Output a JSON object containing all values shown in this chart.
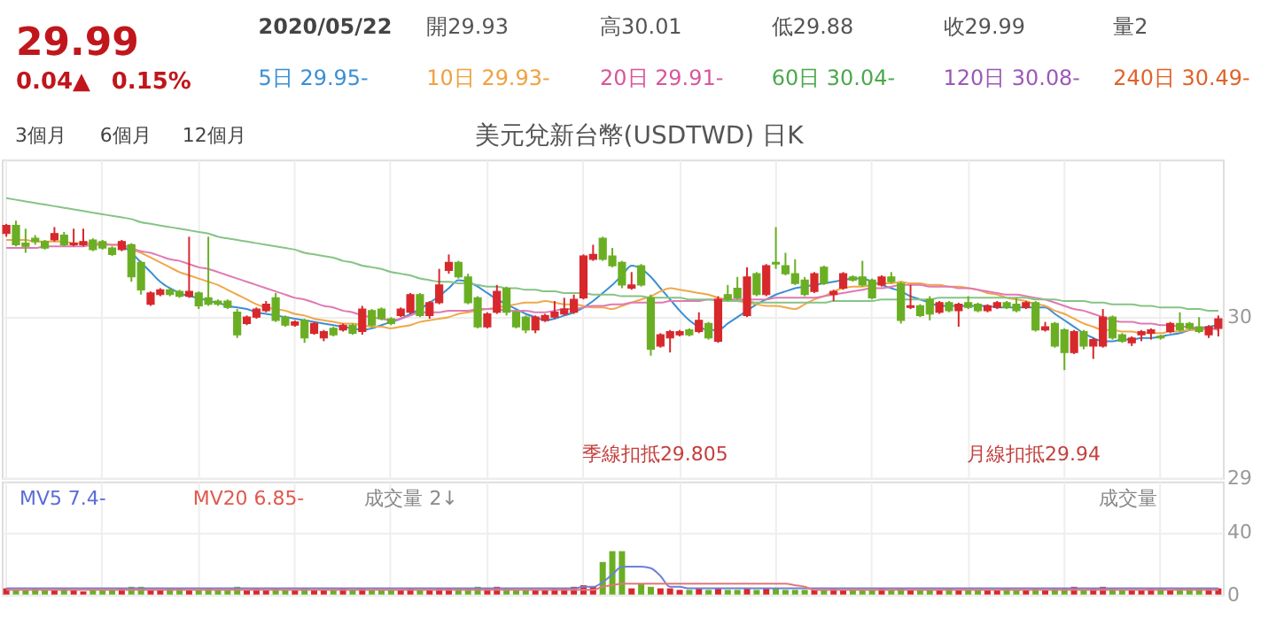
{
  "chart_data": [
    {
      "type": "other",
      "annotations": [
        "29.99",
        "0.04▲",
        "0.15%",
        "2020/05/22",
        "開29.93",
        "高30.01",
        "低29.88",
        "收29.99",
        "量2",
        "5日 29.95-",
        "10日 29.93-",
        "20日 29.91-",
        "60日 30.04-",
        "120日 30.08-",
        "240日 30.49-",
        "3個月",
        "6個月",
        "12個月"
      ]
    },
    {
      "type": "candlestick",
      "title": "美元兌新台幣(USDTWD) 日K",
      "categories": [
        null,
        null,
        null,
        null,
        null,
        null,
        null,
        null,
        null,
        null,
        null,
        null,
        null,
        null,
        null,
        null,
        null,
        null,
        null,
        null,
        null,
        null,
        null,
        null,
        null,
        null,
        null,
        null,
        null,
        null,
        null,
        null,
        null,
        null,
        null,
        null,
        null,
        null,
        null,
        null,
        null,
        null,
        null,
        null,
        null,
        null,
        null,
        null,
        null,
        null,
        null,
        null,
        null,
        null,
        null,
        null,
        null,
        null,
        null,
        null,
        null,
        null,
        null,
        null,
        null,
        null,
        null,
        null,
        null,
        null,
        null,
        null,
        null,
        null,
        null,
        null,
        null,
        null,
        null,
        null,
        null,
        null,
        null,
        null,
        null,
        null,
        null,
        null,
        null,
        null,
        null,
        null,
        null,
        null,
        null,
        null,
        null,
        null,
        null,
        null,
        null,
        null,
        null,
        null,
        null,
        null,
        null,
        null,
        null,
        null,
        null,
        null,
        null,
        null,
        null,
        null,
        null,
        null,
        null,
        null,
        null,
        null,
        null,
        null,
        null,
        null,
        null
      ],
      "ohlc": [
        [
          30.52,
          30.58,
          30.5,
          30.57
        ],
        [
          30.57,
          30.6,
          30.44,
          30.45
        ],
        [
          30.46,
          30.55,
          30.4,
          30.44
        ],
        [
          30.49,
          30.51,
          30.45,
          30.47
        ],
        [
          30.47,
          30.48,
          30.42,
          30.43
        ],
        [
          30.48,
          30.56,
          30.47,
          30.52
        ],
        [
          30.51,
          30.53,
          30.44,
          30.45
        ],
        [
          30.45,
          30.55,
          30.44,
          30.46
        ],
        [
          30.45,
          30.55,
          30.44,
          30.47
        ],
        [
          30.48,
          30.49,
          30.41,
          30.42
        ],
        [
          30.47,
          30.48,
          30.42,
          30.43
        ],
        [
          30.43,
          30.44,
          30.38,
          30.39
        ],
        [
          30.42,
          30.48,
          30.41,
          30.47
        ],
        [
          30.45,
          30.46,
          30.22,
          30.25
        ],
        [
          30.34,
          30.35,
          30.14,
          30.17
        ],
        [
          30.08,
          30.16,
          30.07,
          30.15
        ],
        [
          30.14,
          30.18,
          30.13,
          30.17
        ],
        [
          30.17,
          30.18,
          30.13,
          30.14
        ],
        [
          30.16,
          30.17,
          30.12,
          30.13
        ],
        [
          30.13,
          30.5,
          30.12,
          30.16
        ],
        [
          30.15,
          30.16,
          30.05,
          30.07
        ],
        [
          30.12,
          30.5,
          30.07,
          30.08
        ],
        [
          30.1,
          30.11,
          30.07,
          30.08
        ],
        [
          30.1,
          30.11,
          30.05,
          30.06
        ],
        [
          30.03,
          30.05,
          29.87,
          29.89
        ],
        [
          29.96,
          30.01,
          29.95,
          30.0
        ],
        [
          30.0,
          30.06,
          29.99,
          30.05
        ],
        [
          30.04,
          30.1,
          30.03,
          30.08
        ],
        [
          30.12,
          30.15,
          29.97,
          29.98
        ],
        [
          30.0,
          30.01,
          29.94,
          29.95
        ],
        [
          29.95,
          29.98,
          29.94,
          29.97
        ],
        [
          29.98,
          29.99,
          29.84,
          29.87
        ],
        [
          29.9,
          29.97,
          29.89,
          29.96
        ],
        [
          29.87,
          29.92,
          29.85,
          29.91
        ],
        [
          29.93,
          29.94,
          29.88,
          29.89
        ],
        [
          29.92,
          29.96,
          29.91,
          29.95
        ],
        [
          29.95,
          29.96,
          29.89,
          29.9
        ],
        [
          29.91,
          30.07,
          29.89,
          30.05
        ],
        [
          30.04,
          30.05,
          29.94,
          29.95
        ],
        [
          30.05,
          30.06,
          29.98,
          29.99
        ],
        [
          29.99,
          30.0,
          29.95,
          29.96
        ],
        [
          30.01,
          30.06,
          30.0,
          30.05
        ],
        [
          30.03,
          30.15,
          30.02,
          30.14
        ],
        [
          30.14,
          30.15,
          30.0,
          30.01
        ],
        [
          30.01,
          30.1,
          29.99,
          30.09
        ],
        [
          30.09,
          30.3,
          30.08,
          30.2
        ],
        [
          30.29,
          30.39,
          30.27,
          30.34
        ],
        [
          30.34,
          30.35,
          30.24,
          30.25
        ],
        [
          30.25,
          30.27,
          30.08,
          30.09
        ],
        [
          30.12,
          30.13,
          29.93,
          29.94
        ],
        [
          29.94,
          30.03,
          29.93,
          30.02
        ],
        [
          30.03,
          30.2,
          30.02,
          30.16
        ],
        [
          30.18,
          30.19,
          30.01,
          30.03
        ],
        [
          30.03,
          30.04,
          29.93,
          29.94
        ],
        [
          30.0,
          30.01,
          29.9,
          29.92
        ],
        [
          29.92,
          30.01,
          29.9,
          30.0
        ],
        [
          29.98,
          30.02,
          29.97,
          30.01
        ],
        [
          30.0,
          30.1,
          29.99,
          30.03
        ],
        [
          30.02,
          30.12,
          30.01,
          30.05
        ],
        [
          30.03,
          30.14,
          30.02,
          30.11
        ],
        [
          30.12,
          30.39,
          30.11,
          30.38
        ],
        [
          30.36,
          30.45,
          30.35,
          30.39
        ],
        [
          30.49,
          30.5,
          30.35,
          30.36
        ],
        [
          30.38,
          30.43,
          30.31,
          30.32
        ],
        [
          30.34,
          30.35,
          30.18,
          30.2
        ],
        [
          30.18,
          30.28,
          30.17,
          30.2
        ],
        [
          30.32,
          30.33,
          30.19,
          30.2
        ],
        [
          30.12,
          30.14,
          29.76,
          29.8
        ],
        [
          29.82,
          29.9,
          29.81,
          29.89
        ],
        [
          29.87,
          29.92,
          29.78,
          29.91
        ],
        [
          29.89,
          29.92,
          29.88,
          29.91
        ],
        [
          29.92,
          29.93,
          29.88,
          29.89
        ],
        [
          29.91,
          30.03,
          29.9,
          29.98
        ],
        [
          29.96,
          29.97,
          29.86,
          29.87
        ],
        [
          29.85,
          30.13,
          29.84,
          30.11
        ],
        [
          30.14,
          30.2,
          30.1,
          30.11
        ],
        [
          30.18,
          30.25,
          30.11,
          30.12
        ],
        [
          30.01,
          30.31,
          30.0,
          30.25
        ],
        [
          30.27,
          30.28,
          30.13,
          30.14
        ],
        [
          30.14,
          30.33,
          30.13,
          30.32
        ],
        [
          30.34,
          30.56,
          30.3,
          30.33
        ],
        [
          30.32,
          30.4,
          30.26,
          30.27
        ],
        [
          30.27,
          30.36,
          30.2,
          30.21
        ],
        [
          30.23,
          30.25,
          30.13,
          30.14
        ],
        [
          30.16,
          30.28,
          30.15,
          30.27
        ],
        [
          30.31,
          30.32,
          30.2,
          30.21
        ],
        [
          30.14,
          30.17,
          30.1,
          30.16
        ],
        [
          30.18,
          30.28,
          30.17,
          30.27
        ],
        [
          30.25,
          30.26,
          30.22,
          30.23
        ],
        [
          30.25,
          30.35,
          30.19,
          30.2
        ],
        [
          30.23,
          30.24,
          30.11,
          30.12
        ],
        [
          30.2,
          30.26,
          30.19,
          30.25
        ],
        [
          30.25,
          30.28,
          30.21,
          30.22
        ],
        [
          30.21,
          30.22,
          29.96,
          29.98
        ],
        [
          30.06,
          30.2,
          30.05,
          30.07
        ],
        [
          30.07,
          30.08,
          30.0,
          30.01
        ],
        [
          30.11,
          30.13,
          29.98,
          30.02
        ],
        [
          30.03,
          30.1,
          30.02,
          30.09
        ],
        [
          30.09,
          30.1,
          30.03,
          30.04
        ],
        [
          30.04,
          30.09,
          29.94,
          30.08
        ],
        [
          30.09,
          30.13,
          30.05,
          30.06
        ],
        [
          30.08,
          30.09,
          30.03,
          30.04
        ],
        [
          30.04,
          30.08,
          30.03,
          30.07
        ],
        [
          30.06,
          30.1,
          30.05,
          30.09
        ],
        [
          30.09,
          30.1,
          30.05,
          30.06
        ],
        [
          30.08,
          30.12,
          30.03,
          30.04
        ],
        [
          30.06,
          30.1,
          30.05,
          30.09
        ],
        [
          30.09,
          30.1,
          29.91,
          29.92
        ],
        [
          29.92,
          29.97,
          29.91,
          29.94
        ],
        [
          29.96,
          29.97,
          29.81,
          29.82
        ],
        [
          29.92,
          29.93,
          29.67,
          29.78
        ],
        [
          29.78,
          29.92,
          29.77,
          29.91
        ],
        [
          29.91,
          29.92,
          29.8,
          29.82
        ],
        [
          29.82,
          29.87,
          29.74,
          29.86
        ],
        [
          29.82,
          30.05,
          29.81,
          30.0
        ],
        [
          30.0,
          30.01,
          29.86,
          29.87
        ],
        [
          29.89,
          29.9,
          29.84,
          29.85
        ],
        [
          29.84,
          29.88,
          29.82,
          29.87
        ],
        [
          29.89,
          29.92,
          29.85,
          29.91
        ],
        [
          29.9,
          29.93,
          29.86,
          29.92
        ],
        [
          29.88,
          29.89,
          29.86,
          29.87
        ],
        [
          29.91,
          29.97,
          29.9,
          29.96
        ],
        [
          29.96,
          30.03,
          29.91,
          29.92
        ],
        [
          29.96,
          29.97,
          29.92,
          29.93
        ],
        [
          29.94,
          30.0,
          29.9,
          29.91
        ],
        [
          29.89,
          29.95,
          29.87,
          29.94
        ],
        [
          29.93,
          30.01,
          29.88,
          29.99
        ]
      ],
      "colors": [
        "#d7282c",
        "#6aaf23",
        "#6aaf23",
        "#6aaf23",
        "#6aaf23",
        "#d7282c",
        "#6aaf23",
        "#d7282c",
        "#d7282c",
        "#6aaf23",
        "#6aaf23",
        "#6aaf23",
        "#d7282c",
        "#6aaf23",
        "#6aaf23",
        "#d7282c",
        "#d7282c",
        "#6aaf23",
        "#6aaf23",
        "#d7282c",
        "#6aaf23",
        "#6aaf23",
        "#6aaf23",
        "#6aaf23",
        "#6aaf23",
        "#d7282c",
        "#d7282c",
        "#d7282c",
        "#6aaf23",
        "#6aaf23",
        "#d7282c",
        "#6aaf23",
        "#d7282c",
        "#d7282c",
        "#6aaf23",
        "#d7282c",
        "#6aaf23",
        "#d7282c",
        "#6aaf23",
        "#6aaf23",
        "#6aaf23",
        "#d7282c",
        "#d7282c",
        "#6aaf23",
        "#d7282c",
        "#d7282c",
        "#d7282c",
        "#6aaf23",
        "#6aaf23",
        "#6aaf23",
        "#d7282c",
        "#d7282c",
        "#6aaf23",
        "#6aaf23",
        "#6aaf23",
        "#d7282c",
        "#d7282c",
        "#d7282c",
        "#d7282c",
        "#d7282c",
        "#d7282c",
        "#d7282c",
        "#6aaf23",
        "#6aaf23",
        "#6aaf23",
        "#d7282c",
        "#6aaf23",
        "#6aaf23",
        "#d7282c",
        "#d7282c",
        "#d7282c",
        "#6aaf23",
        "#d7282c",
        "#6aaf23",
        "#d7282c",
        "#6aaf23",
        "#6aaf23",
        "#d7282c",
        "#6aaf23",
        "#d7282c",
        "#6aaf23",
        "#6aaf23",
        "#6aaf23",
        "#6aaf23",
        "#d7282c",
        "#6aaf23",
        "#d7282c",
        "#d7282c",
        "#6aaf23",
        "#6aaf23",
        "#6aaf23",
        "#d7282c",
        "#6aaf23",
        "#6aaf23",
        "#d7282c",
        "#6aaf23",
        "#6aaf23",
        "#d7282c",
        "#6aaf23",
        "#d7282c",
        "#6aaf23",
        "#6aaf23",
        "#d7282c",
        "#d7282c",
        "#6aaf23",
        "#6aaf23",
        "#d7282c",
        "#6aaf23",
        "#d7282c",
        "#6aaf23",
        "#6aaf23",
        "#d7282c",
        "#6aaf23",
        "#d7282c",
        "#d7282c",
        "#6aaf23",
        "#6aaf23",
        "#d7282c",
        "#d7282c",
        "#d7282c",
        "#6aaf23",
        "#d7282c",
        "#6aaf23",
        "#6aaf23",
        "#6aaf23",
        "#d7282c",
        "#d7282c"
      ],
      "series": [
        {
          "type": "line",
          "color": "#3b8fd4",
          "values": [
            null,
            null,
            null,
            null,
            null,
            null,
            null,
            null,
            null,
            null,
            null,
            null,
            30.45,
            30.4,
            30.34,
            30.28,
            30.22,
            30.18,
            30.15,
            30.13,
            30.12,
            30.1,
            30.09,
            30.07,
            30.06,
            30.05,
            30.03,
            30.02,
            30.01,
            30.0,
            29.99,
            29.98,
            29.97,
            29.96,
            29.95,
            29.94,
            29.93,
            29.92,
            29.93,
            29.95,
            29.97,
            29.99,
            30.02,
            30.05,
            30.09,
            30.13,
            30.18,
            30.23,
            30.22,
            30.19,
            30.15,
            30.11,
            30.08,
            30.05,
            30.02,
            30.0,
            29.98,
            29.99,
            30.01,
            30.03,
            30.06,
            30.1,
            30.15,
            30.2,
            30.26,
            30.32,
            30.3,
            30.25,
            30.18,
            30.11,
            30.04,
            29.98,
            29.94,
            29.92,
            29.92,
            29.96,
            30.0,
            30.04,
            30.08,
            30.11,
            30.14,
            30.16,
            30.18,
            30.19,
            30.2,
            30.21,
            30.22,
            30.23,
            30.24,
            30.24,
            30.22,
            30.2,
            30.18,
            30.16,
            30.13,
            30.11,
            30.09,
            30.07,
            30.07,
            30.07,
            30.07,
            30.07,
            30.07,
            30.06,
            30.06,
            30.06,
            30.06,
            30.06,
            30.06,
            30.02,
            29.98,
            29.94,
            29.9,
            29.87,
            29.85,
            29.85,
            29.86,
            29.86,
            29.87,
            29.87,
            29.88,
            29.89,
            29.9,
            29.92,
            29.93,
            29.94,
            29.95
          ]
        },
        {
          "type": "line",
          "color": "#f0a848",
          "values": [
            30.48,
            30.48,
            30.48,
            30.47,
            30.47,
            30.47,
            30.47,
            30.46,
            30.46,
            30.46,
            30.46,
            30.45,
            30.45,
            30.42,
            30.4,
            30.37,
            30.34,
            30.31,
            30.28,
            30.26,
            30.24,
            30.22,
            30.2,
            30.17,
            30.14,
            30.11,
            30.08,
            30.06,
            30.05,
            30.04,
            30.02,
            30.01,
            29.99,
            29.98,
            29.97,
            29.96,
            29.96,
            29.95,
            29.94,
            29.94,
            29.93,
            29.94,
            29.95,
            29.97,
            29.98,
            29.99,
            30.0,
            30.02,
            30.03,
            30.04,
            30.05,
            30.06,
            30.07,
            30.08,
            30.09,
            30.09,
            30.1,
            30.09,
            30.08,
            30.08,
            30.07,
            30.06,
            30.06,
            30.05,
            30.07,
            30.09,
            30.11,
            30.13,
            30.16,
            30.18,
            30.17,
            30.16,
            30.15,
            30.14,
            30.12,
            30.11,
            30.1,
            30.09,
            30.08,
            30.07,
            30.07,
            30.06,
            30.05,
            30.08,
            30.11,
            30.13,
            30.16,
            30.18,
            30.19,
            30.19,
            30.2,
            30.21,
            30.21,
            30.22,
            30.21,
            30.21,
            30.2,
            30.2,
            30.19,
            30.19,
            30.18,
            30.17,
            30.15,
            30.14,
            30.12,
            30.11,
            30.1,
            30.08,
            30.07,
            30.04,
            30.02,
            29.99,
            29.96,
            29.94,
            29.92,
            29.92,
            29.91,
            29.91,
            29.9,
            29.9,
            29.9,
            29.91,
            29.91,
            29.92,
            29.92,
            29.93,
            29.93
          ]
        },
        {
          "type": "line",
          "color": "#e07ab2",
          "values": [
            30.43,
            30.43,
            30.43,
            30.43,
            30.44,
            30.44,
            30.44,
            30.44,
            30.44,
            30.45,
            30.45,
            30.45,
            30.45,
            30.43,
            30.41,
            30.4,
            30.38,
            30.36,
            30.35,
            30.33,
            30.31,
            30.3,
            30.28,
            30.26,
            30.24,
            30.22,
            30.2,
            30.18,
            30.16,
            30.14,
            30.12,
            30.11,
            30.09,
            30.07,
            30.06,
            30.04,
            30.03,
            30.01,
            30.0,
            29.99,
            29.98,
            29.99,
            30.01,
            30.03,
            30.03,
            30.03,
            30.04,
            30.04,
            30.04,
            30.05,
            30.05,
            30.05,
            30.04,
            30.04,
            30.04,
            30.03,
            30.03,
            30.04,
            30.05,
            30.05,
            30.06,
            30.07,
            30.07,
            30.08,
            30.08,
            30.09,
            30.09,
            30.09,
            30.09,
            30.1,
            30.1,
            30.1,
            30.1,
            30.11,
            30.11,
            30.11,
            30.11,
            30.11,
            30.11,
            30.11,
            30.12,
            30.12,
            30.12,
            30.12,
            30.12,
            30.13,
            30.14,
            30.15,
            30.16,
            30.17,
            30.18,
            30.18,
            30.19,
            30.2,
            30.2,
            30.2,
            30.19,
            30.19,
            30.19,
            30.18,
            30.18,
            30.17,
            30.16,
            30.15,
            30.14,
            30.14,
            30.13,
            30.12,
            30.11,
            30.09,
            30.07,
            30.05,
            30.04,
            30.02,
            30.0,
            29.98,
            29.97,
            29.97,
            29.96,
            29.96,
            29.95,
            29.95,
            29.94,
            29.94,
            29.93,
            29.93,
            29.92
          ]
        },
        {
          "type": "line",
          "color": "#86c486",
          "values": [
            30.74,
            30.73,
            30.72,
            30.71,
            30.7,
            30.69,
            30.68,
            30.67,
            30.66,
            30.65,
            30.64,
            30.63,
            30.62,
            30.61,
            30.59,
            30.58,
            30.57,
            30.56,
            30.55,
            30.54,
            30.53,
            30.52,
            30.5,
            30.49,
            30.48,
            30.47,
            30.46,
            30.45,
            30.44,
            30.43,
            30.42,
            30.4,
            30.39,
            30.38,
            30.37,
            30.35,
            30.34,
            30.32,
            30.31,
            30.3,
            30.28,
            30.27,
            30.26,
            30.24,
            30.23,
            30.22,
            30.22,
            30.21,
            30.21,
            30.2,
            30.19,
            30.19,
            30.18,
            30.18,
            30.17,
            30.17,
            30.16,
            30.16,
            30.15,
            30.15,
            30.15,
            30.14,
            30.14,
            30.14,
            30.13,
            30.13,
            30.13,
            30.12,
            30.12,
            30.12,
            30.12,
            30.11,
            30.11,
            30.11,
            30.1,
            30.1,
            30.1,
            30.1,
            30.09,
            30.09,
            30.09,
            30.09,
            30.09,
            30.09,
            30.09,
            30.09,
            30.1,
            30.1,
            30.1,
            30.1,
            30.1,
            30.11,
            30.11,
            30.11,
            30.11,
            30.11,
            30.11,
            30.12,
            30.12,
            30.12,
            30.12,
            30.12,
            30.12,
            30.12,
            30.12,
            30.12,
            30.12,
            30.11,
            30.11,
            30.11,
            30.1,
            30.1,
            30.1,
            30.09,
            30.09,
            30.08,
            30.08,
            30.08,
            30.07,
            30.07,
            30.06,
            30.06,
            30.06,
            30.05,
            30.05,
            30.04,
            30.04
          ]
        }
      ],
      "ylim": [
        29,
        30.98
      ],
      "yticks": [
        29,
        30
      ],
      "grid": true,
      "tick_labels": "y",
      "annotations": [
        "季線扣抵29.805",
        "月線扣抵29.94"
      ]
    },
    {
      "type": "bar",
      "categories": [
        null,
        null,
        null,
        null,
        null,
        null,
        null,
        null,
        null,
        null,
        null,
        null,
        null,
        null,
        null,
        null,
        null,
        null,
        null,
        null,
        null,
        null,
        null,
        null,
        null,
        null,
        null,
        null,
        null,
        null,
        null,
        null,
        null,
        null,
        null,
        null,
        null,
        null,
        null,
        null,
        null,
        null,
        null,
        null,
        null,
        null,
        null,
        null,
        null,
        null,
        null,
        null,
        null,
        null,
        null,
        null,
        null,
        null,
        null,
        null,
        null,
        null,
        null,
        null,
        null,
        null,
        null,
        null,
        null,
        null,
        null,
        null,
        null,
        null,
        null,
        null,
        null,
        null,
        null,
        null,
        null,
        null,
        null,
        null,
        null,
        null,
        null,
        null,
        null,
        null,
        null,
        null,
        null,
        null,
        null,
        null,
        null,
        null,
        null,
        null,
        null,
        null,
        null,
        null,
        null,
        null,
        null,
        null,
        null,
        null,
        null,
        null,
        null,
        null,
        null,
        null,
        null,
        null,
        null,
        null,
        null,
        null,
        null,
        null,
        null,
        null,
        null
      ],
      "series": [
        {
          "type": "bar",
          "values": [
            4,
            3,
            3,
            4,
            3,
            3,
            4,
            3,
            2,
            3,
            3,
            3,
            4,
            5,
            5,
            3,
            3,
            4,
            4,
            3,
            3,
            4,
            3,
            3,
            5,
            3,
            4,
            3,
            4,
            3,
            3,
            4,
            3,
            3,
            3,
            4,
            3,
            4,
            3,
            3,
            3,
            3,
            4,
            3,
            3,
            4,
            4,
            4,
            4,
            5,
            4,
            5,
            4,
            3,
            3,
            3,
            3,
            4,
            4,
            5,
            6,
            5,
            21,
            28,
            28,
            4,
            7,
            5,
            4,
            4,
            3,
            3,
            4,
            3,
            4,
            3,
            3,
            4,
            3,
            4,
            4,
            3,
            3,
            3,
            3,
            3,
            4,
            3,
            3,
            3,
            3,
            4,
            3,
            4,
            3,
            3,
            3,
            3,
            4,
            3,
            3,
            3,
            3,
            3,
            4,
            3,
            3,
            4,
            3,
            4,
            4,
            5,
            3,
            4,
            5,
            4,
            3,
            3,
            3,
            4,
            4,
            3,
            4,
            4,
            4,
            4,
            4
          ],
          "colors": [
            "#d7282c",
            "#6aaf23",
            "#6aaf23",
            "#6aaf23",
            "#6aaf23",
            "#d7282c",
            "#6aaf23",
            "#d7282c",
            "#d7282c",
            "#6aaf23",
            "#6aaf23",
            "#6aaf23",
            "#d7282c",
            "#6aaf23",
            "#6aaf23",
            "#d7282c",
            "#d7282c",
            "#6aaf23",
            "#6aaf23",
            "#d7282c",
            "#6aaf23",
            "#6aaf23",
            "#6aaf23",
            "#6aaf23",
            "#6aaf23",
            "#d7282c",
            "#d7282c",
            "#d7282c",
            "#6aaf23",
            "#6aaf23",
            "#d7282c",
            "#6aaf23",
            "#d7282c",
            "#d7282c",
            "#6aaf23",
            "#d7282c",
            "#6aaf23",
            "#d7282c",
            "#6aaf23",
            "#6aaf23",
            "#6aaf23",
            "#d7282c",
            "#d7282c",
            "#6aaf23",
            "#d7282c",
            "#d7282c",
            "#d7282c",
            "#6aaf23",
            "#6aaf23",
            "#6aaf23",
            "#d7282c",
            "#d7282c",
            "#6aaf23",
            "#6aaf23",
            "#6aaf23",
            "#d7282c",
            "#d7282c",
            "#d7282c",
            "#d7282c",
            "#d7282c",
            "#d7282c",
            "#d7282c",
            "#6aaf23",
            "#6aaf23",
            "#6aaf23",
            "#d7282c",
            "#6aaf23",
            "#6aaf23",
            "#d7282c",
            "#d7282c",
            "#d7282c",
            "#6aaf23",
            "#d7282c",
            "#6aaf23",
            "#d7282c",
            "#6aaf23",
            "#6aaf23",
            "#d7282c",
            "#6aaf23",
            "#d7282c",
            "#6aaf23",
            "#6aaf23",
            "#6aaf23",
            "#6aaf23",
            "#d7282c",
            "#6aaf23",
            "#d7282c",
            "#d7282c",
            "#6aaf23",
            "#6aaf23",
            "#6aaf23",
            "#d7282c",
            "#6aaf23",
            "#6aaf23",
            "#d7282c",
            "#6aaf23",
            "#6aaf23",
            "#d7282c",
            "#6aaf23",
            "#d7282c",
            "#6aaf23",
            "#6aaf23",
            "#d7282c",
            "#d7282c",
            "#6aaf23",
            "#6aaf23",
            "#d7282c",
            "#6aaf23",
            "#d7282c",
            "#6aaf23",
            "#6aaf23",
            "#d7282c",
            "#6aaf23",
            "#d7282c",
            "#d7282c",
            "#6aaf23",
            "#6aaf23",
            "#d7282c",
            "#d7282c",
            "#d7282c",
            "#6aaf23",
            "#d7282c",
            "#6aaf23",
            "#6aaf23",
            "#6aaf23",
            "#d7282c",
            "#d7282c"
          ]
        },
        {
          "type": "line",
          "color": "#6f7fd8",
          "values": [
            4,
            4,
            4,
            4,
            4,
            4,
            4,
            4,
            4,
            4,
            4,
            4,
            4,
            4,
            4,
            4,
            4,
            4,
            4,
            4,
            4,
            4,
            4,
            4,
            4,
            4,
            4,
            4,
            4,
            4,
            4,
            4,
            4,
            4,
            4,
            4,
            4,
            4,
            4,
            4,
            4,
            4,
            4,
            4,
            4,
            4,
            4,
            4,
            4,
            4,
            4,
            4,
            4,
            4,
            4,
            4,
            4,
            4,
            4,
            4,
            5,
            5,
            8,
            13,
            18,
            18,
            18,
            17,
            12,
            5,
            5,
            4,
            4,
            4,
            4,
            4,
            4,
            4,
            4,
            4,
            4,
            4,
            4,
            4,
            4,
            4,
            4,
            4,
            4,
            4,
            4,
            4,
            4,
            4,
            4,
            4,
            4,
            4,
            4,
            4,
            4,
            4,
            4,
            4,
            4,
            4,
            4,
            4,
            4,
            4,
            4,
            4,
            4,
            4,
            4,
            4,
            4,
            4,
            4,
            4,
            4,
            4,
            4,
            4,
            4,
            4,
            4
          ]
        },
        {
          "type": "line",
          "color": "#e0787a",
          "values": [
            3,
            3,
            3,
            3,
            3,
            3,
            3,
            3,
            3,
            3,
            3,
            3,
            3,
            3,
            3,
            3,
            3,
            3,
            3,
            3,
            3,
            3,
            3,
            3,
            3,
            3,
            3,
            3,
            3,
            3,
            3,
            3,
            3,
            3,
            3,
            3,
            3,
            3,
            3,
            3,
            3,
            3,
            3,
            3,
            3,
            3,
            3,
            3,
            3,
            3,
            3,
            3,
            3,
            3,
            3,
            3,
            3,
            3,
            3,
            3,
            3,
            3,
            5,
            6,
            7,
            7,
            7,
            7,
            7,
            7,
            7,
            7,
            7,
            7,
            7,
            7,
            7,
            7,
            7,
            7,
            7,
            7,
            6,
            5,
            3,
            3,
            3,
            3,
            3,
            3,
            3,
            3,
            3,
            3,
            3,
            3,
            3,
            3,
            3,
            3,
            3,
            3,
            3,
            3,
            3,
            3,
            3,
            3,
            3,
            3,
            3,
            3,
            3,
            3,
            3,
            3,
            3,
            3,
            3,
            3,
            3,
            3,
            3,
            3,
            3,
            3,
            3
          ]
        }
      ],
      "ylim": [
        0,
        73
      ],
      "yticks": [
        0,
        40
      ],
      "grid": true,
      "tick_labels": "y",
      "annotations": [
        "MV5 7.4-",
        "MV20 6.85-",
        "成交量 2↓",
        "成交量"
      ]
    }
  ]
}
